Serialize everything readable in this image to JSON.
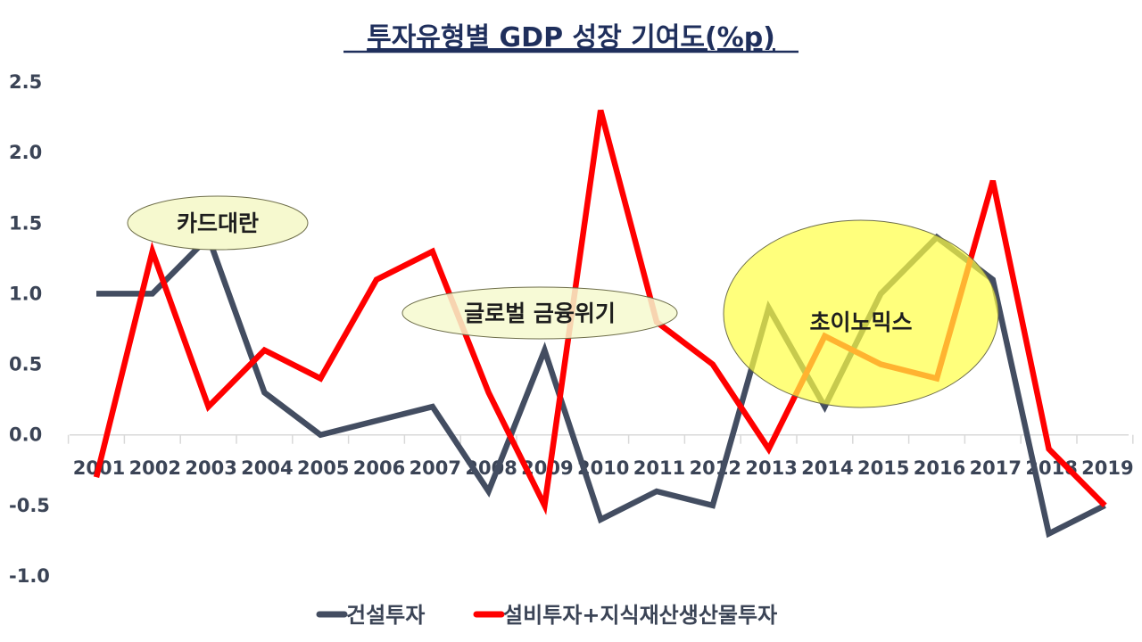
{
  "chart_data": {
    "type": "line",
    "title": "투자유형별 GDP 성장 기여도(%p)",
    "xlabel": "",
    "ylabel": "",
    "ylim": [
      -1.0,
      2.5
    ],
    "yticks": [
      "2.5",
      "2.0",
      "1.5",
      "1.0",
      "0.5",
      "0.0",
      "-0.5",
      "-1.0"
    ],
    "ytick_values": [
      2.5,
      2.0,
      1.5,
      1.0,
      0.5,
      0.0,
      -0.5,
      -1.0
    ],
    "categories": [
      "2001",
      "2002",
      "2003",
      "2004",
      "2005",
      "2006",
      "2007",
      "2008",
      "2009",
      "2010",
      "2011",
      "2012",
      "2013",
      "2014",
      "2015",
      "2016",
      "2017",
      "2018",
      "2019"
    ],
    "series": [
      {
        "name": "건설투자",
        "color": "#434d61",
        "values": [
          1.0,
          1.0,
          1.4,
          0.3,
          0.0,
          0.1,
          0.2,
          -0.4,
          0.6,
          -0.6,
          -0.4,
          -0.5,
          0.9,
          0.2,
          1.0,
          1.4,
          1.1,
          -0.7,
          -0.5
        ]
      },
      {
        "name": "설비투자+지식재산생산물투자",
        "color": "#ff0000",
        "values": [
          -0.3,
          1.3,
          0.2,
          0.6,
          0.4,
          1.1,
          1.3,
          0.3,
          -0.5,
          2.3,
          0.8,
          0.5,
          -0.1,
          0.7,
          0.5,
          0.4,
          1.8,
          -0.1,
          -0.5
        ]
      }
    ],
    "annotations": [
      {
        "text": "카드대란",
        "fill": "#f6f9cf"
      },
      {
        "text": "글로벌 금융위기",
        "fill": "#f6f9cf"
      },
      {
        "text": "초이노믹스",
        "fill": "#ffff44"
      }
    ],
    "legend_position": "bottom"
  }
}
